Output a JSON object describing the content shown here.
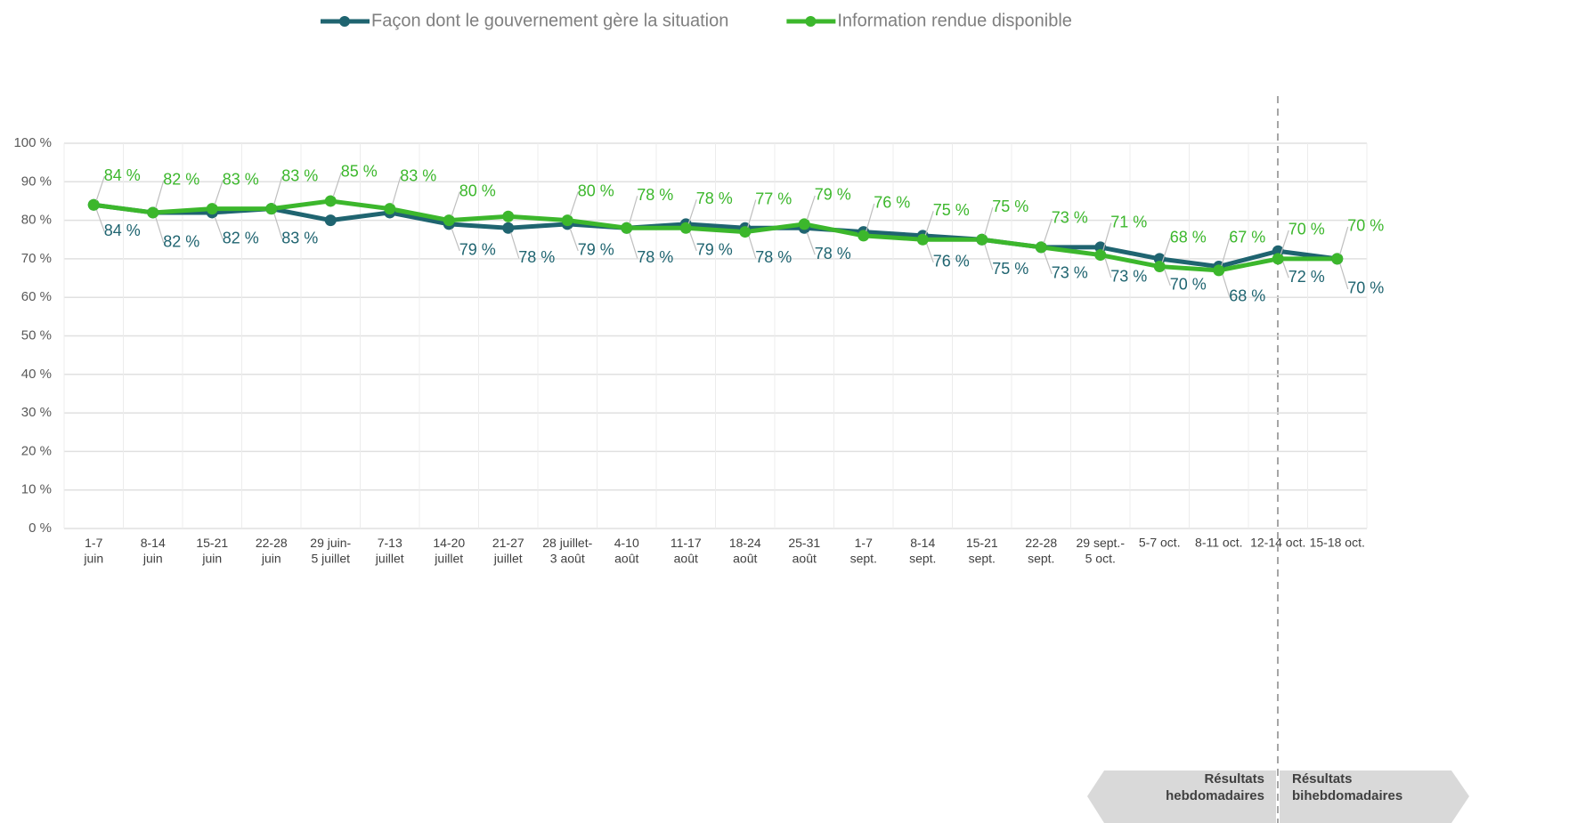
{
  "chart_data": {
    "type": "line",
    "categories": [
      "1-7\njuin",
      "8-14\njuin",
      "15-21\njuin",
      "22-28\njuin",
      "29 juin-\n5 juillet",
      "7-13\njuillet",
      "14-20\njuillet",
      "21-27\njuillet",
      "28 juillet-\n3 août",
      "4-10\naoût",
      "11-17\naoût",
      "18-24\naoût",
      "25-31\naoût",
      "1-7\nsept.",
      "8-14\nsept.",
      "15-21\nsept.",
      "22-28\nsept.",
      "29 sept.-\n5 oct.",
      "5-7 oct.",
      "8-11 oct.",
      "12-14 oct.",
      "15-18 oct."
    ],
    "series": [
      {
        "name": "Façon dont le gouvernement gère la situation",
        "color": "#1f6470",
        "values": [
          84,
          82,
          82,
          83,
          80,
          82,
          79,
          78,
          79,
          78,
          79,
          78,
          78,
          77,
          76,
          75,
          73,
          73,
          70,
          68,
          72,
          70
        ],
        "value_labels": [
          "84 %",
          "82 %",
          "82 %",
          "83 %",
          null,
          null,
          "79 %",
          "78 %",
          "79 %",
          "78 %",
          "79 %",
          "78 %",
          "78 %",
          null,
          "76 %",
          "75 %",
          "73 %",
          "73 %",
          "70 %",
          "68 %",
          "72 %",
          "70 %"
        ]
      },
      {
        "name": "Information rendue disponible",
        "color": "#3cb72c",
        "values": [
          84,
          82,
          83,
          83,
          85,
          83,
          80,
          81,
          80,
          78,
          78,
          77,
          79,
          76,
          75,
          75,
          73,
          71,
          68,
          67,
          70,
          70
        ],
        "value_labels": [
          "84 %",
          "82 %",
          "83 %",
          "83 %",
          "85 %",
          "83 %",
          "80 %",
          null,
          "80 %",
          "78 %",
          "78 %",
          "77 %",
          "79 %",
          "76 %",
          "75 %",
          "75 %",
          "73 %",
          "71 %",
          "68 %",
          "67 %",
          "70 %",
          "70 %"
        ]
      }
    ],
    "ylim": [
      0,
      100
    ],
    "yticks": [
      {
        "value": 0,
        "label": "0 %"
      },
      {
        "value": 10,
        "label": "10 %"
      },
      {
        "value": 20,
        "label": "20 %"
      },
      {
        "value": 30,
        "label": "30 %"
      },
      {
        "value": 40,
        "label": "40 %"
      },
      {
        "value": 50,
        "label": "50 %"
      },
      {
        "value": 60,
        "label": "60 %"
      },
      {
        "value": 70,
        "label": "70 %"
      },
      {
        "value": 80,
        "label": "80 %"
      },
      {
        "value": 90,
        "label": "90 %"
      },
      {
        "value": 100,
        "label": "100 %"
      }
    ],
    "grid": true,
    "legend": "top",
    "annotations": [
      "Résultats\nhebdomadaires",
      "Résultats\nbihebdomadaires"
    ]
  }
}
